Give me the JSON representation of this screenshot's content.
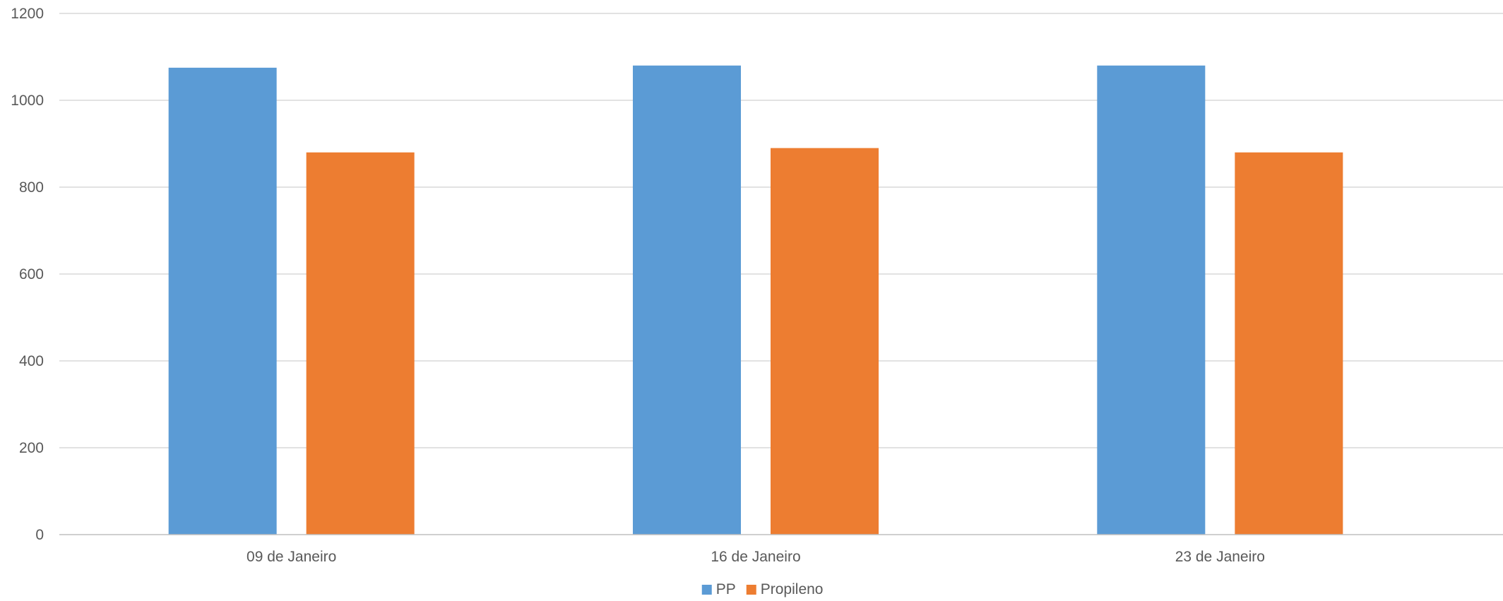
{
  "chart_data": {
    "type": "bar",
    "title": "",
    "xlabel": "",
    "ylabel": "",
    "categories": [
      "09 de Janeiro",
      "16 de Janeiro",
      "23 de Janeiro"
    ],
    "series": [
      {
        "name": "PP",
        "color": "#5b9bd5",
        "values": [
          1075,
          1080,
          1080
        ]
      },
      {
        "name": "Propileno",
        "color": "#ed7d31",
        "values": [
          880,
          890,
          880
        ]
      }
    ],
    "ylim": [
      0,
      1200
    ],
    "yticks": [
      0,
      200,
      400,
      600,
      800,
      1000,
      1200
    ],
    "grid": true,
    "legend_position": "bottom"
  }
}
